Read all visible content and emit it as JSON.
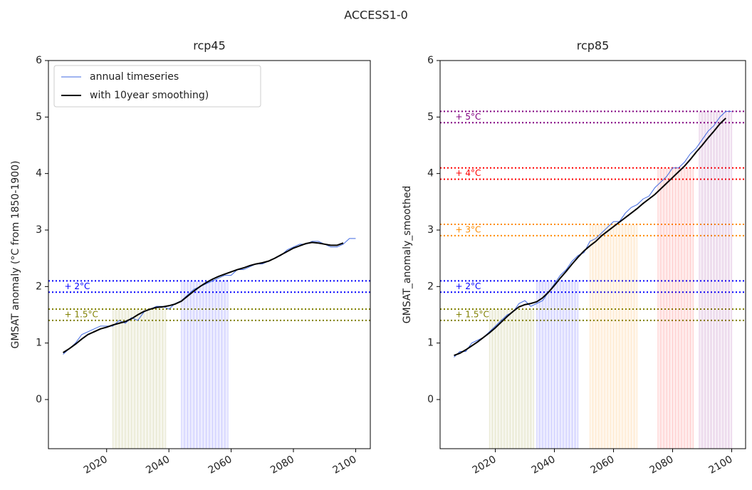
{
  "suptitle": "ACCESS1-0",
  "chart_data": [
    {
      "type": "line",
      "title": "rcp45",
      "y_label": "GMSAT anomaly (°C from 1850-1900)",
      "legend": "upper left",
      "x": [
        2006,
        2008,
        2010,
        2012,
        2014,
        2016,
        2018,
        2020,
        2022,
        2024,
        2026,
        2028,
        2030,
        2032,
        2034,
        2036,
        2038,
        2040,
        2042,
        2044,
        2046,
        2048,
        2050,
        2052,
        2054,
        2056,
        2058,
        2060,
        2062,
        2064,
        2066,
        2068,
        2070,
        2072,
        2074,
        2076,
        2078,
        2080,
        2082,
        2084,
        2086,
        2088,
        2090,
        2092,
        2094,
        2096,
        2098,
        2100
      ],
      "series": [
        {
          "name": "annual timeseries",
          "color": "#4169e1",
          "values": [
            0.8,
            0.9,
            1.0,
            1.15,
            1.2,
            1.25,
            1.3,
            1.3,
            1.3,
            1.4,
            1.35,
            1.45,
            1.4,
            1.55,
            1.6,
            1.65,
            1.65,
            1.6,
            1.7,
            1.75,
            1.85,
            1.95,
            2.0,
            2.05,
            2.1,
            2.15,
            2.2,
            2.2,
            2.3,
            2.3,
            2.35,
            2.4,
            2.4,
            2.45,
            2.5,
            2.55,
            2.65,
            2.7,
            2.75,
            2.75,
            2.8,
            2.8,
            2.75,
            2.7,
            2.7,
            2.75,
            2.85,
            2.85
          ]
        },
        {
          "name": "with 10year smoothing)",
          "color": "#000000",
          "values": [
            0.83,
            0.9,
            0.98,
            1.07,
            1.15,
            1.2,
            1.25,
            1.28,
            1.32,
            1.35,
            1.38,
            1.43,
            1.5,
            1.56,
            1.6,
            1.63,
            1.64,
            1.66,
            1.69,
            1.74,
            1.83,
            1.92,
            2.0,
            2.07,
            2.13,
            2.18,
            2.22,
            2.26,
            2.3,
            2.33,
            2.37,
            2.4,
            2.42,
            2.45,
            2.5,
            2.56,
            2.62,
            2.68,
            2.72,
            2.76,
            2.78,
            2.77,
            2.75,
            2.73,
            2.73,
            2.77,
            null,
            null
          ]
        }
      ],
      "thresholds": [
        {
          "label": "+ 1.5°C",
          "lower": 1.4,
          "upper": 1.6,
          "color": "#808000",
          "window": [
            2022,
            2039
          ]
        },
        {
          "label": "+ 2°C",
          "lower": 1.9,
          "upper": 2.1,
          "color": "#0000ff",
          "window": [
            2044,
            2059
          ]
        }
      ],
      "xlim": [
        2001.3,
        2104.7
      ],
      "xticks": [
        2020,
        2040,
        2060,
        2080,
        2100
      ],
      "ylim": [
        -0.87,
        6
      ],
      "yticks": [
        0,
        1,
        2,
        3,
        4,
        5,
        6
      ]
    },
    {
      "type": "line",
      "title": "rcp85",
      "y_label": "GMSAT_anomaly_smoothed",
      "x": [
        2006,
        2008,
        2010,
        2012,
        2014,
        2016,
        2018,
        2020,
        2022,
        2024,
        2026,
        2028,
        2030,
        2032,
        2034,
        2036,
        2038,
        2040,
        2042,
        2044,
        2046,
        2048,
        2050,
        2052,
        2054,
        2056,
        2058,
        2060,
        2062,
        2064,
        2066,
        2068,
        2070,
        2072,
        2074,
        2076,
        2078,
        2080,
        2082,
        2084,
        2086,
        2088,
        2090,
        2092,
        2094,
        2096,
        2098,
        2100
      ],
      "series": [
        {
          "name": "annual timeseries",
          "color": "#4169e1",
          "values": [
            0.75,
            0.85,
            0.85,
            1.0,
            1.05,
            1.1,
            1.2,
            1.3,
            1.4,
            1.5,
            1.55,
            1.7,
            1.75,
            1.65,
            1.7,
            1.75,
            1.9,
            2.05,
            2.2,
            2.3,
            2.45,
            2.55,
            2.6,
            2.8,
            2.85,
            2.95,
            3.05,
            3.15,
            3.15,
            3.3,
            3.4,
            3.45,
            3.55,
            3.6,
            3.75,
            3.85,
            3.95,
            4.1,
            4.1,
            4.2,
            4.35,
            4.45,
            4.6,
            4.75,
            4.85,
            5.0,
            5.1,
            5.1
          ]
        },
        {
          "name": "with 10year smoothing)",
          "color": "#000000",
          "values": [
            0.78,
            0.82,
            0.88,
            0.95,
            1.02,
            1.1,
            1.18,
            1.27,
            1.37,
            1.47,
            1.56,
            1.64,
            1.68,
            1.7,
            1.73,
            1.8,
            1.9,
            2.02,
            2.15,
            2.27,
            2.4,
            2.52,
            2.63,
            2.72,
            2.8,
            2.9,
            2.98,
            3.06,
            3.14,
            3.22,
            3.3,
            3.38,
            3.47,
            3.55,
            3.63,
            3.73,
            3.83,
            3.93,
            4.03,
            4.13,
            4.25,
            4.38,
            4.5,
            4.63,
            4.75,
            4.88,
            4.98,
            null
          ]
        }
      ],
      "thresholds": [
        {
          "label": "+ 1.5°C",
          "lower": 1.4,
          "upper": 1.6,
          "color": "#808000",
          "window": [
            2018,
            2033
          ]
        },
        {
          "label": "+ 2°C",
          "lower": 1.9,
          "upper": 2.1,
          "color": "#0000ff",
          "window": [
            2034,
            2048
          ]
        },
        {
          "label": "+ 3°C",
          "lower": 2.9,
          "upper": 3.1,
          "color": "#ff8c00",
          "window": [
            2052,
            2068
          ]
        },
        {
          "label": "+ 4°C",
          "lower": 3.9,
          "upper": 4.1,
          "color": "#ff0000",
          "window": [
            2075,
            2087
          ]
        },
        {
          "label": "+ 5°C",
          "lower": 4.9,
          "upper": 5.1,
          "color": "#800080",
          "window": [
            2089,
            2100
          ]
        }
      ],
      "xlim": [
        2001.3,
        2104.7
      ],
      "xticks": [
        2020,
        2040,
        2060,
        2080,
        2100
      ],
      "ylim": [
        -0.87,
        6
      ],
      "yticks": [
        0,
        1,
        2,
        3,
        4,
        5,
        6
      ]
    }
  ]
}
